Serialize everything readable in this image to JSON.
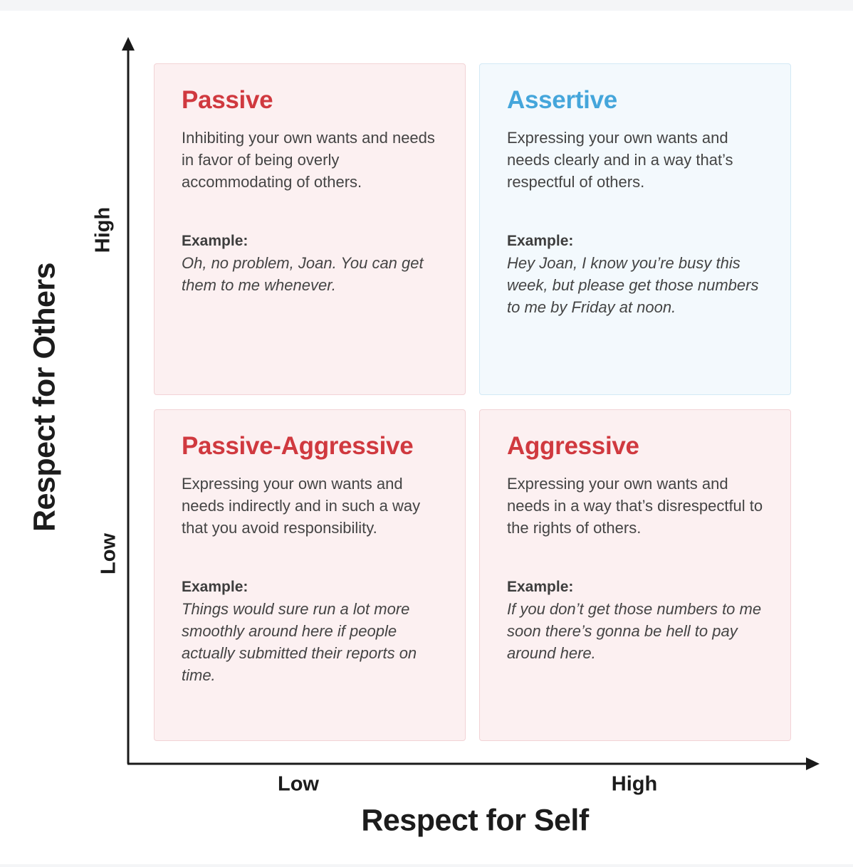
{
  "axes": {
    "y_title": "Respect for Others",
    "x_title": "Respect for Self",
    "y_ticks": {
      "high": "High",
      "low": "Low"
    },
    "x_ticks": {
      "low": "Low",
      "high": "High"
    }
  },
  "quadrants": {
    "passive": {
      "title": "Passive",
      "description": "Inhibiting your own wants and needs in favor of being overly accommodating of others.",
      "example_label": "Example:",
      "example": "Oh, no problem, Joan. You can get them to me whenever."
    },
    "assertive": {
      "title": "Assertive",
      "description": "Expressing your own wants and needs clearly and in a way that’s respectful of others.",
      "example_label": "Example:",
      "example": "Hey Joan, I know you’re busy this week, but please get those numbers to me by Friday at noon."
    },
    "passive_aggressive": {
      "title": "Passive-Aggressive",
      "description": "Expressing your own wants and needs indirectly and in such a way that you avoid responsibility.",
      "example_label": "Example:",
      "example": "Things would sure run a lot more smoothly around here if people actually submitted their reports on time."
    },
    "aggressive": {
      "title": "Aggressive",
      "description": "Expressing your own wants and needs in a way that’s disrespectful to the rights of others.",
      "example_label": "Example:",
      "example": "If you don’t get those numbers to me soon there’s gonna be hell to pay around here."
    }
  },
  "colors": {
    "red_title": "#d0393f",
    "blue_title": "#45a6db",
    "red_panel": "#fcf0f1",
    "blue_panel": "#f3f9fd",
    "axis": "#1a1a1a"
  }
}
